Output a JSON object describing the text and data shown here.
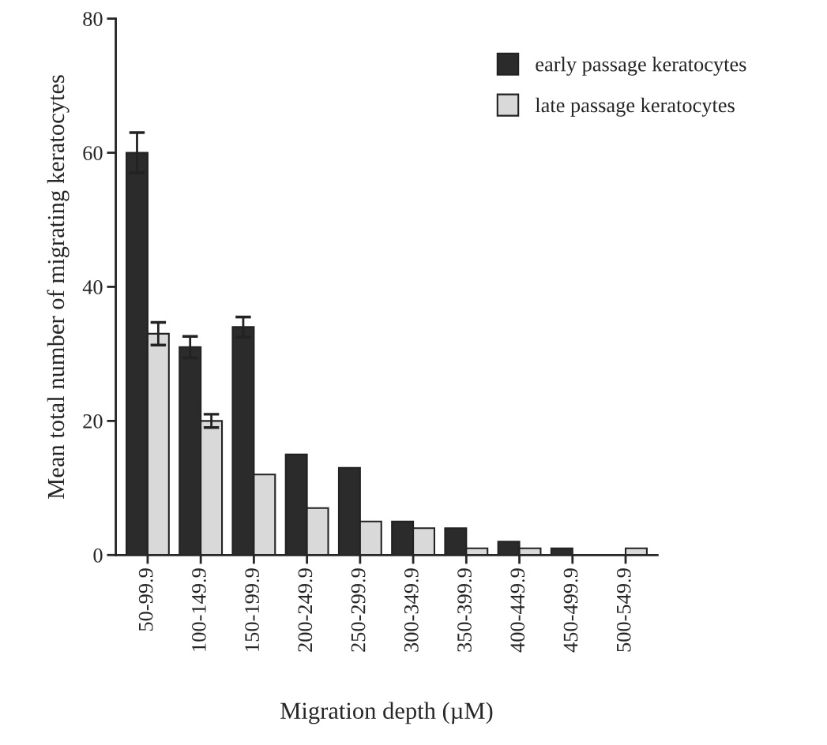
{
  "chart_data": {
    "type": "bar",
    "xlabel": "Migration depth (µM)",
    "ylabel": "Mean total number of migrating keratocytes",
    "categories": [
      "50-99.9",
      "100-149.9",
      "150-199.9",
      "200-249.9",
      "250-299.9",
      "300-349.9",
      "350-399.9",
      "400-449.9",
      "450-499.9",
      "500-549.9"
    ],
    "series": [
      {
        "name": "early passage keratocytes",
        "color": "#2b2b2b",
        "values": [
          60,
          31,
          34,
          15,
          13,
          5,
          4,
          2,
          1,
          0
        ],
        "errors": [
          3,
          1.6,
          1.5,
          null,
          null,
          null,
          null,
          null,
          null,
          null
        ]
      },
      {
        "name": "late passage keratocytes",
        "color": "#d9d9d9",
        "values": [
          33,
          20,
          12,
          7,
          5,
          4,
          1,
          1,
          0,
          1
        ],
        "errors": [
          1.7,
          1,
          null,
          null,
          null,
          null,
          null,
          null,
          null,
          null
        ]
      }
    ],
    "ylim": [
      0,
      80
    ],
    "yticks": [
      0,
      20,
      40,
      60,
      80
    ],
    "grid": false,
    "legend": "top right"
  }
}
